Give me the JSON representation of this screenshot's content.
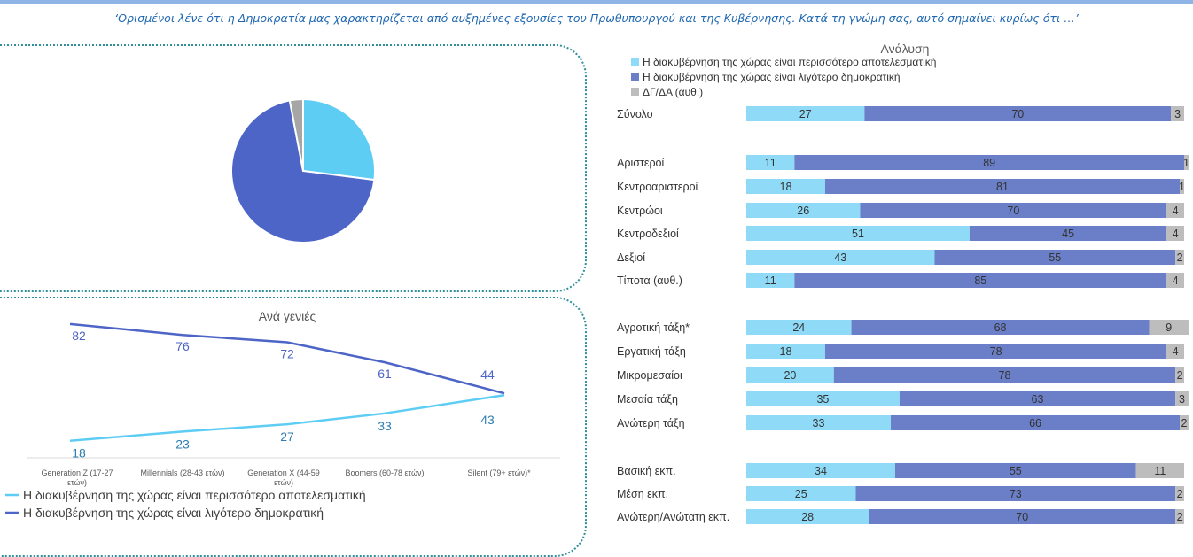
{
  "question": "‘Ορισμένοι λένε ότι η Δημοκρατία μας χαρακτηρίζεται από αυξημένες εξουσίες του Πρωθυπουργού και της Κυβέρνησης. Κατά τη γνώμη σας, αυτό σημαίνει κυρίως ότι …’",
  "colors": {
    "more_effective": "#5ecdf4",
    "less_democratic": "#4e65c8",
    "dk": "#a6a6a6",
    "bar_effective": "#8fdbf7",
    "bar_democratic": "#6a7fc7",
    "bar_dk": "#bdbdbd"
  },
  "chart_data": [
    {
      "type": "pie",
      "labels": [
        "Η διακυβέρνηση της χώρας είναι περισσότερο αποτελεσματική",
        "Η διακυβέρνηση της χώρας είναι λιγότερο δημοκρατική",
        "ΔΓ/ΔΑ (αυθ.)"
      ],
      "values": [
        27,
        70,
        3
      ]
    },
    {
      "type": "line",
      "title": "Ανά γενιές",
      "categories": [
        "Generation Z (17-27 ετών)",
        "Millennials (28-43 ετών)",
        "Generation X (44-59 ετών)",
        "Boomers (60-78 ετών)",
        "Silent (79+ ετών)*"
      ],
      "legend_position": "bottom-left",
      "series": [
        {
          "name": "Η διακυβέρνηση της χώρας είναι περισσότερο αποτελεσματική",
          "values": [
            18,
            23,
            27,
            33,
            43
          ]
        },
        {
          "name": "Η διακυβέρνηση της χώρας είναι λιγότερο δημοκρατική",
          "values": [
            82,
            76,
            72,
            61,
            44
          ]
        }
      ]
    },
    {
      "type": "bar",
      "orientation": "horizontal",
      "stacked": true,
      "title": "Ανάλυση",
      "legend_position": "top-left",
      "categories": [
        "Σύνολο",
        "",
        "Αριστεροί",
        "Κεντροαριστεροί",
        "Κεντρώοι",
        "Κεντροδεξιοί",
        "Δεξιοί",
        "Τίποτα (αυθ.)",
        "",
        "Αγροτική τάξη*",
        "Εργατική τάξη",
        "Μικρομεσαίοι",
        "Μεσαία τάξη",
        "Ανώτερη τάξη",
        "",
        "Βασική εκπ.",
        "Μέση εκπ.",
        "Ανώτερη/Ανώτατη εκπ."
      ],
      "series": [
        {
          "name": "Η διακυβέρνηση της χώρας είναι περισσότερο αποτελεσματική",
          "values": [
            27,
            null,
            11,
            18,
            26,
            51,
            43,
            11,
            null,
            24,
            18,
            20,
            35,
            33,
            null,
            34,
            25,
            28
          ]
        },
        {
          "name": "Η διακυβέρνηση της χώρας είναι λιγότερο δημοκρατική",
          "values": [
            70,
            null,
            89,
            81,
            70,
            45,
            55,
            85,
            null,
            68,
            78,
            78,
            63,
            66,
            null,
            55,
            73,
            70
          ]
        },
        {
          "name": "ΔΓ/ΔΑ (αυθ.)",
          "values": [
            3,
            null,
            1,
            1,
            4,
            4,
            2,
            4,
            null,
            9,
            4,
            2,
            3,
            2,
            null,
            11,
            2,
            2
          ]
        }
      ]
    }
  ]
}
